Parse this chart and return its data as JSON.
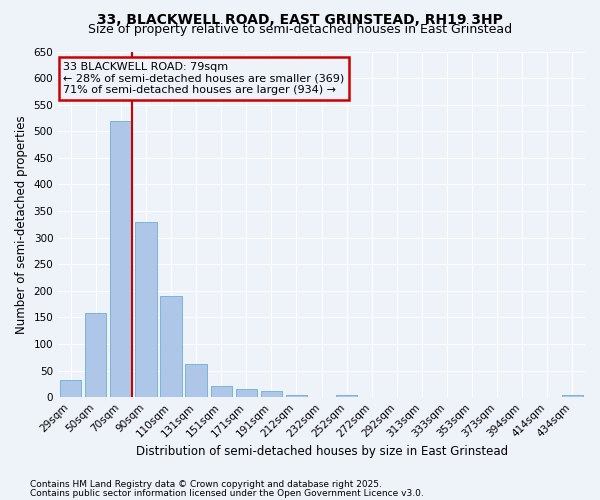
{
  "title": "33, BLACKWELL ROAD, EAST GRINSTEAD, RH19 3HP",
  "subtitle": "Size of property relative to semi-detached houses in East Grinstead",
  "xlabel": "Distribution of semi-detached houses by size in East Grinstead",
  "ylabel": "Number of semi-detached properties",
  "categories": [
    "29sqm",
    "50sqm",
    "70sqm",
    "90sqm",
    "110sqm",
    "131sqm",
    "151sqm",
    "171sqm",
    "191sqm",
    "212sqm",
    "232sqm",
    "252sqm",
    "272sqm",
    "292sqm",
    "313sqm",
    "333sqm",
    "353sqm",
    "373sqm",
    "394sqm",
    "414sqm",
    "434sqm"
  ],
  "values": [
    32,
    158,
    520,
    330,
    190,
    63,
    21,
    15,
    11,
    5,
    0,
    4,
    0,
    0,
    0,
    0,
    0,
    0,
    0,
    0,
    5
  ],
  "bar_color": "#aec6e8",
  "bar_edge_color": "#6baed6",
  "vline_color": "#cc0000",
  "annotation_title": "33 BLACKWELL ROAD: 79sqm",
  "annotation_line1": "← 28% of semi-detached houses are smaller (369)",
  "annotation_line2": "71% of semi-detached houses are larger (934) →",
  "box_edge_color": "#cc0000",
  "ylim": [
    0,
    650
  ],
  "yticks": [
    0,
    50,
    100,
    150,
    200,
    250,
    300,
    350,
    400,
    450,
    500,
    550,
    600,
    650
  ],
  "footnote1": "Contains HM Land Registry data © Crown copyright and database right 2025.",
  "footnote2": "Contains public sector information licensed under the Open Government Licence v3.0.",
  "bg_color": "#eef2f9",
  "title_fontsize": 10,
  "subtitle_fontsize": 9,
  "axis_label_fontsize": 8.5,
  "tick_fontsize": 7.5,
  "annotation_fontsize": 8,
  "footnote_fontsize": 6.5
}
